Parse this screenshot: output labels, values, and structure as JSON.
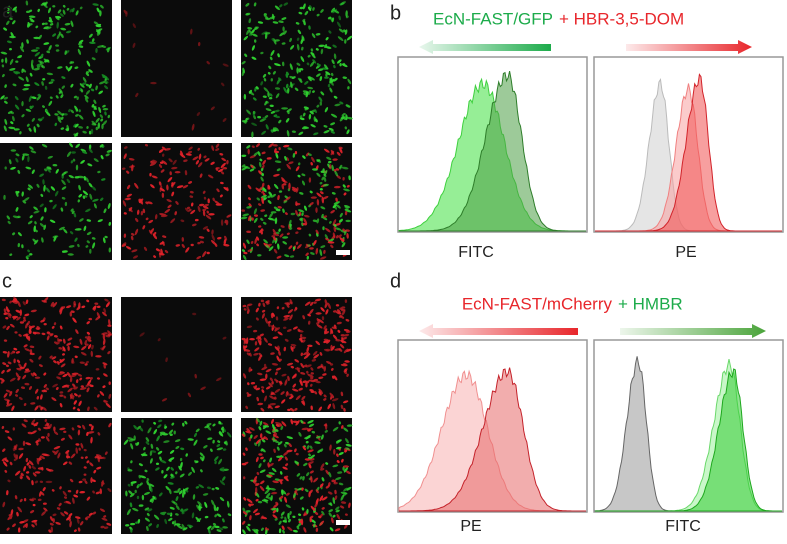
{
  "panels": {
    "a": {
      "label": "a"
    },
    "b": {
      "label": "b",
      "title": {
        "left": "EcN-FAST/GFP",
        "right": "+ HBR-3,5-DOM"
      },
      "axes": [
        "FITC",
        "PE"
      ]
    },
    "c": {
      "label": "c"
    },
    "d": {
      "label": "d",
      "title": {
        "left": "EcN-FAST/mCherry",
        "right": "+ HMBR"
      },
      "axes": [
        "PE",
        "FITC"
      ]
    }
  }
}
